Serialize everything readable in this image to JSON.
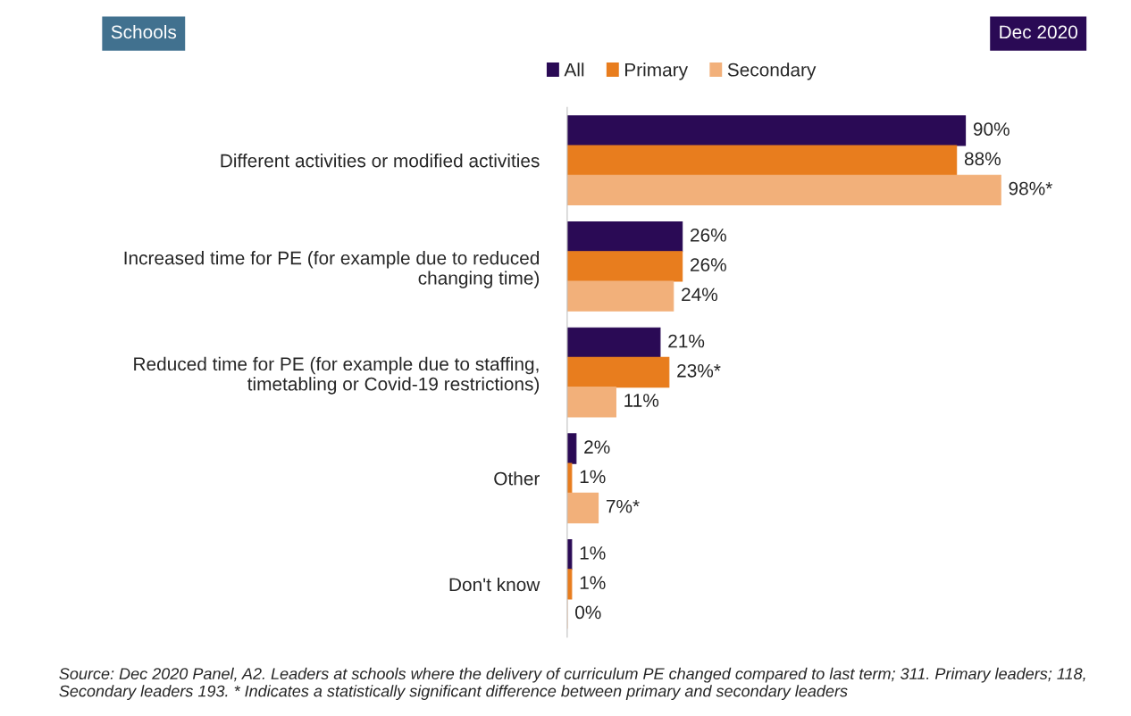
{
  "chart_data": {
    "type": "bar",
    "orientation": "horizontal",
    "legend": "top",
    "grid": false,
    "categories": [
      "Different activities or modified activities",
      "Increased time for PE (for example due to reduced\nchanging time)",
      "Reduced time for PE (for example due to staffing,\ntimetabling or Covid-19 restrictions)",
      "Other",
      "Don't know"
    ],
    "series": [
      {
        "name": "All",
        "color": "#2a0a55",
        "values": [
          90,
          26,
          21,
          2,
          1
        ],
        "value_labels": [
          "90%",
          "26%",
          "21%",
          "2%",
          "1%"
        ]
      },
      {
        "name": "Primary",
        "color": "#e87d1e",
        "values": [
          88,
          26,
          23,
          1,
          1
        ],
        "value_labels": [
          "88%",
          "26%",
          "23%*",
          "1%",
          "1%"
        ]
      },
      {
        "name": "Secondary",
        "color": "#f2b07a",
        "values": [
          98,
          24,
          11,
          7,
          0
        ],
        "value_labels": [
          "98%*",
          "24%",
          "11%",
          "7%*",
          "0%"
        ]
      }
    ],
    "annotations": [
      "Schools",
      "Dec 2020",
      "Source: Dec 2020 Panel, A2. Leaders at schools where the delivery of curriculum PE changed compared to last term; 311. Primary leaders; 118, Secondary leaders 193. * Indicates a statistically significant difference between primary and secondary leaders"
    ]
  }
}
